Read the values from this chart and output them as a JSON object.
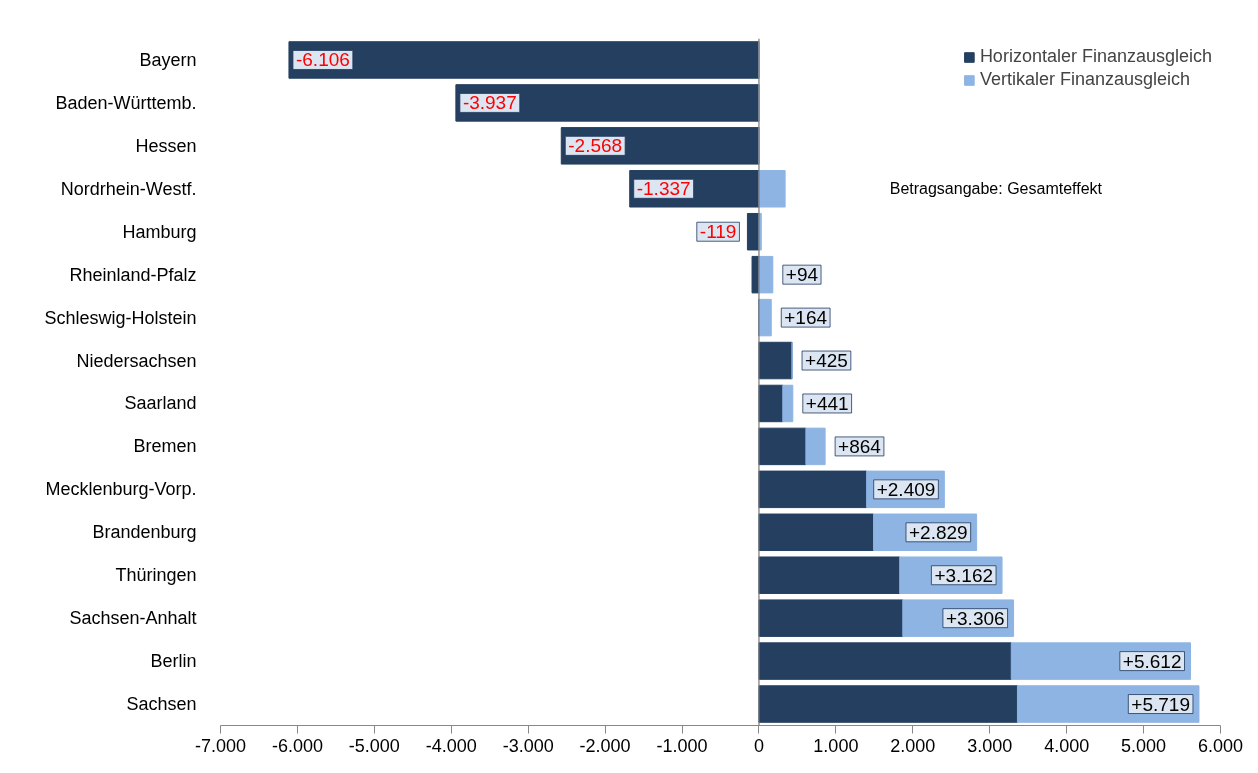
{
  "chart_data": {
    "type": "bar",
    "orientation": "horizontal",
    "stacked": true,
    "categories": [
      "Bayern",
      "Baden-Württemb.",
      "Hessen",
      "Nordrhein-Westf.",
      "Hamburg",
      "Rheinland-Pfalz",
      "Schleswig-Holstein",
      "Niedersachsen",
      "Saarland",
      "Bremen",
      "Mecklenburg-Vorp.",
      "Brandenburg",
      "Thüringen",
      "Sachsen-Anhalt",
      "Berlin",
      "Sachsen"
    ],
    "series": [
      {
        "name": "Horizontaler Finanzausgleich",
        "color": "#243f60",
        "values": [
          -6110,
          -3940,
          -2570,
          -1680,
          -150,
          -90,
          0,
          430,
          310,
          610,
          1400,
          1490,
          1830,
          1870,
          3280,
          3360
        ]
      },
      {
        "name": "Vertikaler Finanzausgleich",
        "color": "#8eb4e3",
        "values": [
          0,
          0,
          0,
          340,
          30,
          180,
          160,
          0,
          130,
          250,
          1010,
          1340,
          1330,
          1440,
          2330,
          2360
        ]
      }
    ],
    "value_labels": [
      "-6.106",
      "-3.937",
      "-2.568",
      "-1.337",
      "-119",
      "+94",
      "+164",
      "+425",
      "+441",
      "+864",
      "+2.409",
      "+2.829",
      "+3.162",
      "+3.306",
      "+5.612",
      "+5.719"
    ],
    "xlim": [
      -7000,
      6000
    ],
    "xticks": [
      {
        "value": -7000,
        "label": "-7.000"
      },
      {
        "value": -6000,
        "label": "-6.000"
      },
      {
        "value": -5000,
        "label": "-5.000"
      },
      {
        "value": -4000,
        "label": "-4.000"
      },
      {
        "value": -3000,
        "label": "-3.000"
      },
      {
        "value": -2000,
        "label": "-2.000"
      },
      {
        "value": -1000,
        "label": "-1.000"
      },
      0,
      {
        "value": 1000,
        "label": "1.000"
      },
      {
        "value": 2000,
        "label": "2.000"
      },
      {
        "value": 3000,
        "label": "3.000"
      },
      {
        "value": 4000,
        "label": "4.000"
      },
      {
        "value": 5000,
        "label": "5.000"
      },
      {
        "value": 6000,
        "label": "6.000"
      }
    ],
    "annotations": [
      "Betragsangabe: Gesamteffekt"
    ],
    "ref_lines": [
      {
        "axis": "x",
        "value": 0,
        "color": "#777777"
      }
    ],
    "legend": "top right",
    "grid": false
  }
}
